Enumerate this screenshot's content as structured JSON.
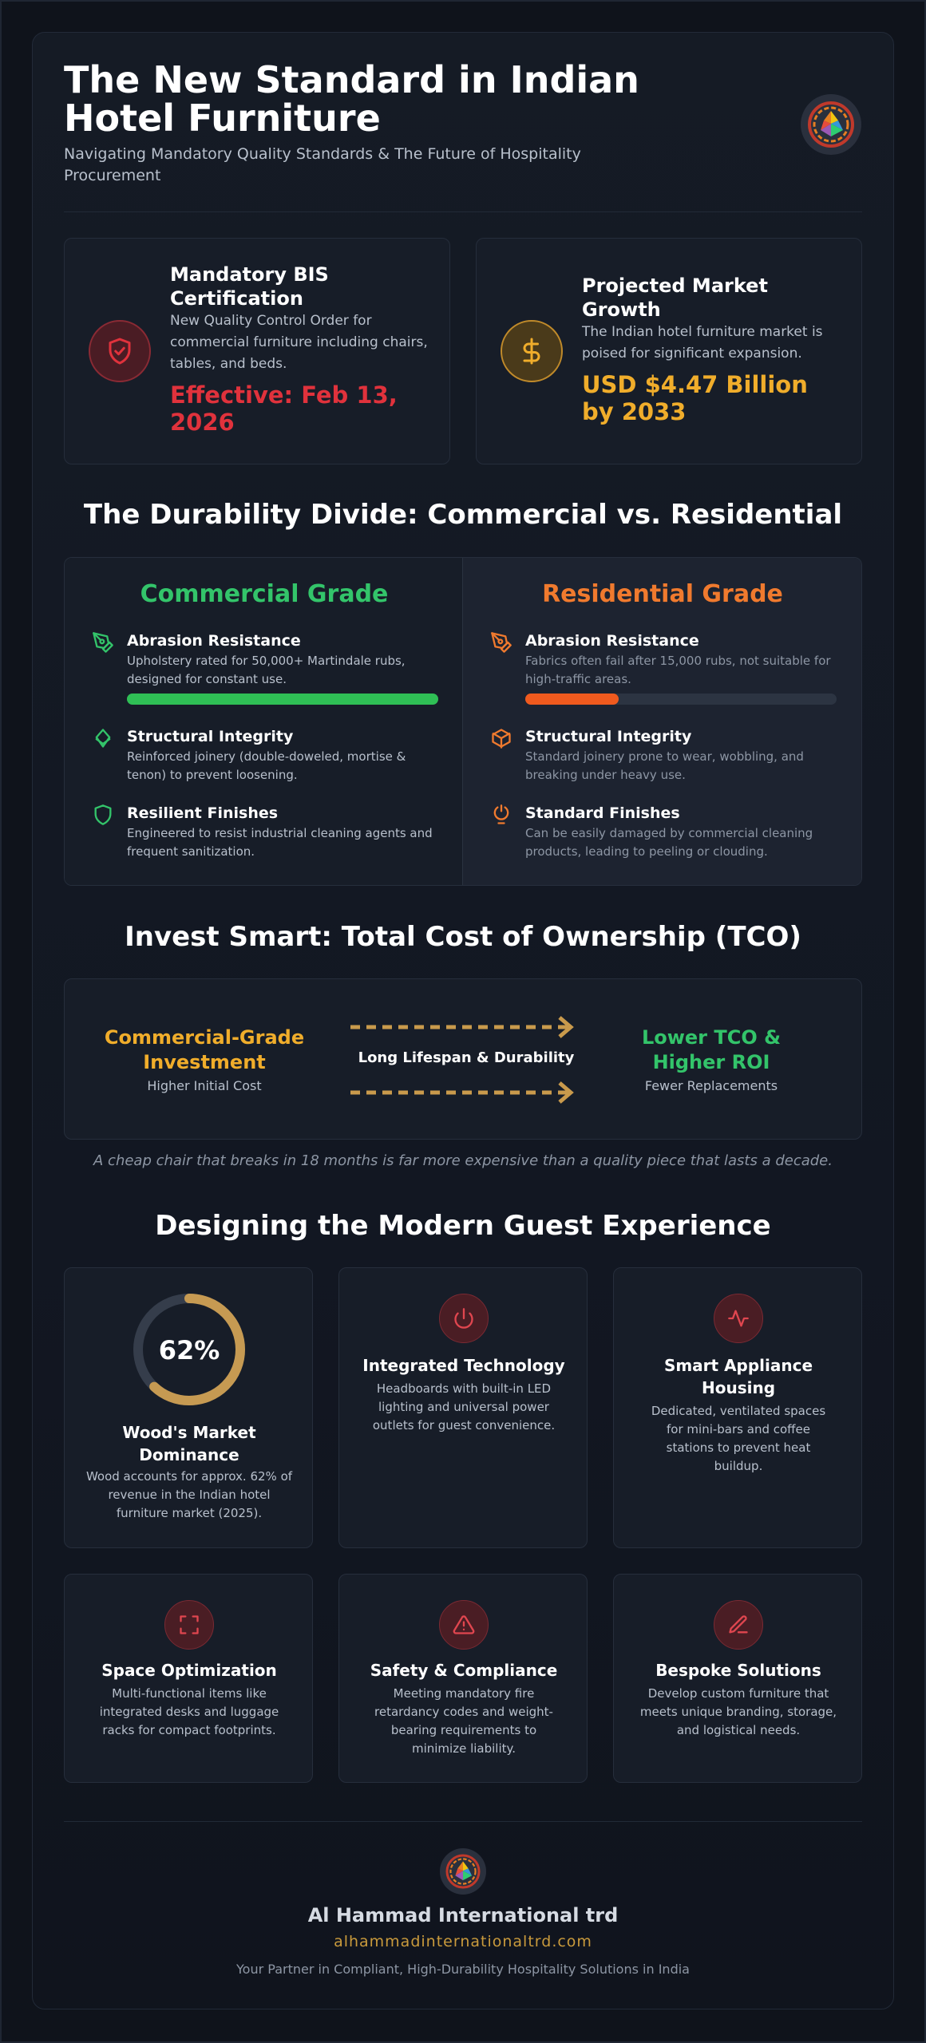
{
  "header": {
    "title": "The New Standard in Indian Hotel Furniture",
    "subtitle": "Navigating Mandatory Quality Standards & The Future of Hospitality Procurement",
    "logo_icon": "company-logo-icon"
  },
  "stats": [
    {
      "title": "Mandatory BIS Certification",
      "description": "New Quality Control Order for commercial furniture including chairs, tables, and beds.",
      "highlight": "Effective: Feb 13, 2026",
      "icon": "shield-check-icon",
      "color": "#e0323c"
    },
    {
      "title": "Projected Market Growth",
      "description": "The Indian hotel furniture market is poised for significant expansion.",
      "highlight": "USD $4.47 Billion by 2033",
      "icon": "dollar-icon",
      "color": "#f0ad2b"
    }
  ],
  "durability": {
    "heading": "The Durability Divide: Commercial vs. Residential",
    "commercial": {
      "title": "Commercial Grade",
      "color": "#33c46a",
      "features": [
        {
          "title": "Abrasion Resistance",
          "description": "Upholstery rated for 50,000+ Martindale rubs, designed for constant use.",
          "icon": "pen-tool-icon",
          "bar_fraction": 1.0
        },
        {
          "title": "Structural Integrity",
          "description": "Reinforced joinery (double-doweled, mortise & tenon) to prevent loosening.",
          "icon": "layers-icon"
        },
        {
          "title": "Resilient Finishes",
          "description": "Engineered to resist industrial cleaning agents and frequent sanitization.",
          "icon": "shield-icon"
        }
      ]
    },
    "residential": {
      "title": "Residential Grade",
      "color": "#f07a2e",
      "features": [
        {
          "title": "Abrasion Resistance",
          "description": "Fabrics often fail after 15,000 rubs, not suitable for high-traffic areas.",
          "icon": "pen-tool-icon",
          "bar_fraction": 0.3
        },
        {
          "title": "Structural Integrity",
          "description": "Standard joinery prone to wear, wobbling, and breaking under heavy use.",
          "icon": "box-icon"
        },
        {
          "title": "Standard Finishes",
          "description": "Can be easily damaged by commercial cleaning products, leading to peeling or clouding.",
          "icon": "plug-icon"
        }
      ]
    }
  },
  "tco": {
    "heading": "Invest Smart: Total Cost of Ownership (TCO)",
    "left_title": "Commercial-Grade Investment",
    "left_sub": "Higher Initial Cost",
    "middle": "Long Lifespan & Durability",
    "right_title": "Lower TCO & Higher ROI",
    "right_sub": "Fewer Replacements",
    "quote": "A cheap chair that breaks in 18 months is far more expensive than a quality piece that lasts a decade."
  },
  "guest": {
    "heading": "Designing the Modern Guest Experience",
    "wood": {
      "percent_label": "62%",
      "percent_value": 62,
      "title": "Wood's Market Dominance",
      "description": "Wood accounts for approx. 62% of revenue in the Indian hotel furniture market (2025)."
    },
    "tiles": [
      {
        "title": "Integrated Technology",
        "description": "Headboards with built-in LED lighting and universal power outlets for guest convenience.",
        "icon": "power-icon"
      },
      {
        "title": "Smart Appliance Housing",
        "description": "Dedicated, ventilated spaces for mini-bars and coffee stations to prevent heat buildup.",
        "icon": "activity-icon"
      },
      {
        "title": "Space Optimization",
        "description": "Multi-functional items like integrated desks and luggage racks for compact footprints.",
        "icon": "maximize-icon"
      },
      {
        "title": "Safety & Compliance",
        "description": "Meeting mandatory fire retardancy codes and weight-bearing requirements to minimize liability.",
        "icon": "alert-triangle-icon"
      },
      {
        "title": "Bespoke Solutions",
        "description": "Develop custom furniture that meets unique branding, storage, and logistical needs.",
        "icon": "edit-pen-icon"
      }
    ]
  },
  "footer": {
    "company": "Al Hammad International trd",
    "url": "alhammadinternationaltrd.com",
    "tagline": "Your Partner in Compliant, High-Durability Hospitality Solutions in India"
  }
}
